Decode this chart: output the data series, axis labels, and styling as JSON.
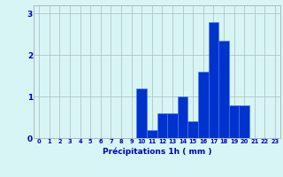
{
  "hours": [
    0,
    1,
    2,
    3,
    4,
    5,
    6,
    7,
    8,
    9,
    10,
    11,
    12,
    13,
    14,
    15,
    16,
    17,
    18,
    19,
    20,
    21,
    22,
    23
  ],
  "values": [
    0,
    0,
    0,
    0,
    0,
    0,
    0,
    0,
    0,
    0,
    1.2,
    0.2,
    0.6,
    0.6,
    1.0,
    0.4,
    1.6,
    2.8,
    2.35,
    0.8,
    0.8,
    0,
    0,
    0
  ],
  "bar_color": "#0033cc",
  "bar_edge_color": "#4477ff",
  "background_color": "#d8f5f5",
  "grid_color": "#aabbbb",
  "text_color": "#0000bb",
  "xlabel": "Précipitations 1h ( mm )",
  "ylim": [
    0,
    3.2
  ],
  "yticks": [
    0,
    1,
    2,
    3
  ],
  "figsize": [
    3.2,
    2.0
  ],
  "dpi": 100
}
